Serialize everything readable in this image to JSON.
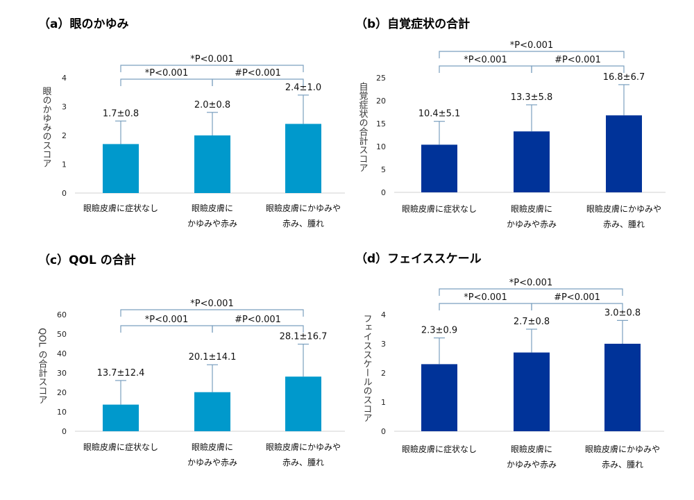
{
  "chart_data": [
    {
      "type": "bar",
      "title": "（a）眼のかゆみ",
      "ylabel": "眼のかゆみのスコア",
      "ylim": [
        0,
        4
      ],
      "yticks": [
        0,
        1,
        2,
        3,
        4
      ],
      "bar_color": "#0099cc",
      "categories": [
        [
          "眼瞼皮膚に症状なし"
        ],
        [
          "眼瞼皮膚に",
          "かゆみや赤み"
        ],
        [
          "眼瞼皮膚にかゆみや",
          "赤み、腫れ"
        ]
      ],
      "values": [
        1.7,
        2.0,
        2.4
      ],
      "errors": [
        0.8,
        0.8,
        1.0
      ],
      "data_labels": [
        "1.7±0.8",
        "2.0±0.8",
        "2.4±1.0"
      ],
      "significance": [
        {
          "from": 0,
          "to": 2,
          "label": "*P<0.001"
        },
        {
          "from": 0,
          "to": 1,
          "label": "*P<0.001"
        },
        {
          "from": 1,
          "to": 2,
          "label": "#P<0.001"
        }
      ]
    },
    {
      "type": "bar",
      "title": "（b）自覚症状の合計",
      "ylabel": "自覚症状の合計スコア",
      "ylim": [
        0,
        25
      ],
      "yticks": [
        0,
        5,
        10,
        15,
        20,
        25
      ],
      "bar_color": "#003399",
      "categories": [
        [
          "眼瞼皮膚に症状なし"
        ],
        [
          "眼瞼皮膚に",
          "かゆみや赤み"
        ],
        [
          "眼瞼皮膚にかゆみや",
          "赤み、腫れ"
        ]
      ],
      "values": [
        10.4,
        13.3,
        16.8
      ],
      "errors": [
        5.1,
        5.8,
        6.7
      ],
      "data_labels": [
        "10.4±5.1",
        "13.3±5.8",
        "16.8±6.7"
      ],
      "significance": [
        {
          "from": 0,
          "to": 2,
          "label": "*P<0.001"
        },
        {
          "from": 0,
          "to": 1,
          "label": "*P<0.001"
        },
        {
          "from": 1,
          "to": 2,
          "label": "#P<0.001"
        }
      ]
    },
    {
      "type": "bar",
      "title": "（c）QOL の合計",
      "ylabel": "QOL の合計スコア",
      "ylim": [
        0,
        60
      ],
      "yticks": [
        0,
        10,
        20,
        30,
        40,
        50,
        60
      ],
      "bar_color": "#0099cc",
      "categories": [
        [
          "眼瞼皮膚に症状なし"
        ],
        [
          "眼瞼皮膚に",
          "かゆみや赤み"
        ],
        [
          "眼瞼皮膚にかゆみや",
          "赤み、腫れ"
        ]
      ],
      "values": [
        13.7,
        20.1,
        28.1
      ],
      "errors": [
        12.4,
        14.1,
        16.7
      ],
      "data_labels": [
        "13.7±12.4",
        "20.1±14.1",
        "28.1±16.7"
      ],
      "significance": [
        {
          "from": 0,
          "to": 2,
          "label": "*P<0.001"
        },
        {
          "from": 0,
          "to": 1,
          "label": "*P<0.001"
        },
        {
          "from": 1,
          "to": 2,
          "label": "#P<0.001"
        }
      ]
    },
    {
      "type": "bar",
      "title": "（d）フェイススケール",
      "ylabel": "フェイススケールのスコア",
      "ylim": [
        0,
        4
      ],
      "yticks": [
        0,
        1,
        2,
        3,
        4
      ],
      "bar_color": "#003399",
      "categories": [
        [
          "眼瞼皮膚に症状なし"
        ],
        [
          "眼瞼皮膚に",
          "かゆみや赤み"
        ],
        [
          "眼瞼皮膚にかゆみや",
          "赤み、腫れ"
        ]
      ],
      "values": [
        2.3,
        2.7,
        3.0
      ],
      "errors": [
        0.9,
        0.8,
        0.8
      ],
      "data_labels": [
        "2.3±0.9",
        "2.7±0.8",
        "3.0±0.8"
      ],
      "significance": [
        {
          "from": 0,
          "to": 2,
          "label": "*P<0.001"
        },
        {
          "from": 0,
          "to": 1,
          "label": "*P<0.001"
        },
        {
          "from": 1,
          "to": 2,
          "label": "#P<0.001"
        }
      ]
    }
  ]
}
